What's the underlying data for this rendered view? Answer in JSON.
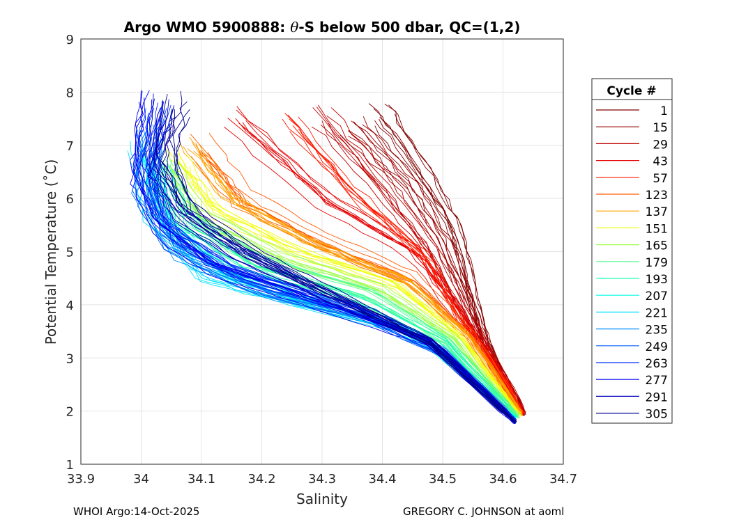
{
  "chart_data": {
    "type": "line",
    "title_prefix": "Argo WMO 5900888: ",
    "title_theta": "θ",
    "title_suffix": "-S below 500 dbar,  QC=(1,2)",
    "xlabel": "Salinity",
    "ylabel": "Potential Temperature (˚C)",
    "xlim": [
      33.9,
      34.7
    ],
    "ylim": [
      1,
      9
    ],
    "xticks": [
      "33.9",
      "34",
      "34.1",
      "34.2",
      "34.3",
      "34.4",
      "34.5",
      "34.6",
      "34.7"
    ],
    "yticks": [
      "1",
      "2",
      "3",
      "4",
      "5",
      "6",
      "7",
      "8",
      "9"
    ],
    "grid": true,
    "legend": {
      "title": "Cycle #",
      "placement": "right-outside"
    },
    "series": [
      {
        "name": "1",
        "color": "#800000",
        "points": [
          [
            34.4,
            7.6
          ],
          [
            34.46,
            6.6
          ],
          [
            34.52,
            5.5
          ],
          [
            34.55,
            4.2
          ],
          [
            34.57,
            3.3
          ],
          [
            34.635,
            1.95
          ]
        ]
      },
      {
        "name": "15",
        "color": "#9a0000",
        "points": [
          [
            34.35,
            7.4
          ],
          [
            34.44,
            6.3
          ],
          [
            34.5,
            5.2
          ],
          [
            34.55,
            3.8
          ],
          [
            34.6,
            2.6
          ],
          [
            34.635,
            1.95
          ]
        ]
      },
      {
        "name": "29",
        "color": "#c00000",
        "points": [
          [
            34.3,
            7.5
          ],
          [
            34.4,
            6.2
          ],
          [
            34.48,
            5.0
          ],
          [
            34.54,
            3.7
          ],
          [
            34.6,
            2.6
          ],
          [
            34.635,
            1.95
          ]
        ]
      },
      {
        "name": "43",
        "color": "#e60000",
        "points": [
          [
            34.15,
            7.5
          ],
          [
            34.3,
            6.0
          ],
          [
            34.45,
            5.0
          ],
          [
            34.53,
            3.8
          ],
          [
            34.6,
            2.6
          ],
          [
            34.633,
            1.95
          ]
        ]
      },
      {
        "name": "57",
        "color": "#ff1a00",
        "points": [
          [
            34.25,
            7.4
          ],
          [
            34.35,
            6.1
          ],
          [
            34.47,
            4.9
          ],
          [
            34.53,
            3.7
          ],
          [
            34.6,
            2.6
          ],
          [
            34.633,
            1.95
          ]
        ]
      },
      {
        "name": "123",
        "color": "#ff5a00",
        "points": [
          [
            34.1,
            7.0
          ],
          [
            34.17,
            6.0
          ],
          [
            34.3,
            5.2
          ],
          [
            34.45,
            4.5
          ],
          [
            34.55,
            3.4
          ],
          [
            34.63,
            1.95
          ]
        ]
      },
      {
        "name": "137",
        "color": "#ffa000",
        "points": [
          [
            34.08,
            6.9
          ],
          [
            34.15,
            5.9
          ],
          [
            34.28,
            5.1
          ],
          [
            34.44,
            4.4
          ],
          [
            34.54,
            3.4
          ],
          [
            34.63,
            1.95
          ]
        ]
      },
      {
        "name": "151",
        "color": "#f0ff10",
        "points": [
          [
            34.06,
            6.8
          ],
          [
            34.12,
            5.8
          ],
          [
            34.26,
            5.0
          ],
          [
            34.42,
            4.4
          ],
          [
            34.53,
            3.4
          ],
          [
            34.628,
            1.92
          ]
        ]
      },
      {
        "name": "165",
        "color": "#a0ff50",
        "points": [
          [
            34.05,
            6.7
          ],
          [
            34.1,
            5.7
          ],
          [
            34.24,
            4.9
          ],
          [
            34.4,
            4.3
          ],
          [
            34.52,
            3.4
          ],
          [
            34.625,
            1.9
          ]
        ]
      },
      {
        "name": "179",
        "color": "#50ff90",
        "points": [
          [
            34.04,
            6.6
          ],
          [
            34.08,
            5.6
          ],
          [
            34.2,
            4.8
          ],
          [
            34.38,
            4.2
          ],
          [
            34.51,
            3.3
          ],
          [
            34.625,
            1.9
          ]
        ]
      },
      {
        "name": "193",
        "color": "#20ffb0",
        "points": [
          [
            34.03,
            6.5
          ],
          [
            34.07,
            5.5
          ],
          [
            34.18,
            4.7
          ],
          [
            34.36,
            4.1
          ],
          [
            34.5,
            3.3
          ],
          [
            34.62,
            1.88
          ]
        ]
      },
      {
        "name": "207",
        "color": "#00ffe0",
        "points": [
          [
            34.02,
            6.8
          ],
          [
            34.04,
            5.6
          ],
          [
            34.14,
            4.6
          ],
          [
            34.3,
            4.0
          ],
          [
            34.45,
            3.5
          ],
          [
            34.62,
            1.86
          ]
        ]
      },
      {
        "name": "221",
        "color": "#00e0ff",
        "points": [
          [
            34.0,
            7.0
          ],
          [
            34.02,
            5.7
          ],
          [
            34.1,
            4.6
          ],
          [
            34.25,
            4.1
          ],
          [
            34.42,
            3.6
          ],
          [
            34.5,
            3.1
          ],
          [
            34.62,
            1.85
          ]
        ]
      },
      {
        "name": "235",
        "color": "#0090ff",
        "points": [
          [
            34.01,
            7.2
          ],
          [
            34.01,
            6.0
          ],
          [
            34.06,
            5.0
          ],
          [
            34.2,
            4.3
          ],
          [
            34.4,
            3.7
          ],
          [
            34.5,
            3.1
          ],
          [
            34.62,
            1.82
          ]
        ]
      },
      {
        "name": "249",
        "color": "#0060ff",
        "points": [
          [
            34.02,
            7.5
          ],
          [
            34.0,
            6.3
          ],
          [
            34.05,
            5.2
          ],
          [
            34.18,
            4.4
          ],
          [
            34.38,
            3.8
          ],
          [
            34.5,
            3.1
          ],
          [
            34.62,
            1.82
          ]
        ]
      },
      {
        "name": "263",
        "color": "#0030ff",
        "points": [
          [
            34.03,
            7.6
          ],
          [
            34.01,
            6.4
          ],
          [
            34.04,
            5.4
          ],
          [
            34.15,
            4.6
          ],
          [
            34.35,
            3.9
          ],
          [
            34.5,
            3.1
          ],
          [
            34.62,
            1.8
          ]
        ]
      },
      {
        "name": "277",
        "color": "#0000f0",
        "points": [
          [
            34.02,
            7.8
          ],
          [
            34.0,
            6.5
          ],
          [
            34.03,
            5.5
          ],
          [
            34.12,
            4.7
          ],
          [
            34.3,
            4.0
          ],
          [
            34.48,
            3.3
          ],
          [
            34.62,
            1.8
          ]
        ]
      },
      {
        "name": "291",
        "color": "#0000c0",
        "points": [
          [
            34.04,
            7.6
          ],
          [
            34.02,
            6.6
          ],
          [
            34.06,
            5.7
          ],
          [
            34.15,
            5.0
          ],
          [
            34.3,
            4.2
          ],
          [
            34.48,
            3.3
          ],
          [
            34.62,
            1.8
          ]
        ]
      },
      {
        "name": "305",
        "color": "#000090",
        "points": [
          [
            34.06,
            7.8
          ],
          [
            34.04,
            6.8
          ],
          [
            34.08,
            5.8
          ],
          [
            34.18,
            5.0
          ],
          [
            34.32,
            4.2
          ],
          [
            34.48,
            3.3
          ],
          [
            34.62,
            1.8
          ]
        ]
      }
    ]
  },
  "footer": {
    "left": "WHOI Argo:14-Oct-2025",
    "right": "GREGORY C. JOHNSON at aoml"
  }
}
